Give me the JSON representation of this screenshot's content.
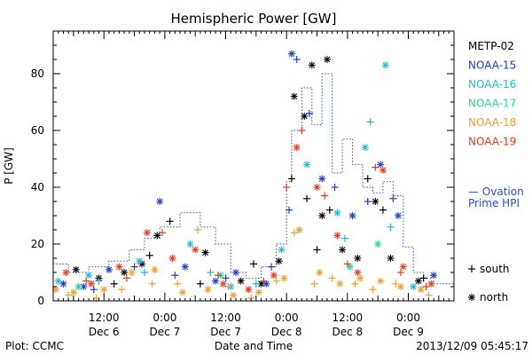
{
  "chart_data": {
    "type": "scatter",
    "title": "Hemispheric Power [GW]",
    "ylabel": "P [GW]",
    "xlabel": "Date and Time",
    "ylim": [
      0,
      95
    ],
    "yticks": [
      0,
      20,
      40,
      60,
      80
    ],
    "xlim": [
      "2013-12-06 02:00",
      "2013-12-09 09:00"
    ],
    "xticks": [
      {
        "time": "2013-12-06 12:00",
        "top": "12:00",
        "bottom": "Dec 6"
      },
      {
        "time": "2013-12-07 00:00",
        "top": "0:00",
        "bottom": "Dec 7"
      },
      {
        "time": "2013-12-07 12:00",
        "top": "12:00",
        "bottom": "Dec 7"
      },
      {
        "time": "2013-12-08 00:00",
        "top": "0:00",
        "bottom": "Dec 8"
      },
      {
        "time": "2013-12-08 12:00",
        "top": "12:00",
        "bottom": "Dec 8"
      },
      {
        "time": "2013-12-09 00:00",
        "top": "0:00",
        "bottom": "Dec 9"
      }
    ],
    "legend": [
      {
        "name": "METP-02",
        "color": "#000000"
      },
      {
        "name": "NOAA-15",
        "color": "#1e3cc8"
      },
      {
        "name": "NOAA-16",
        "color": "#22b8d8"
      },
      {
        "name": "NOAA-17",
        "color": "#22d89a"
      },
      {
        "name": "NOAA-18",
        "color": "#f0a030"
      },
      {
        "name": "NOAA-19",
        "color": "#e83a1e"
      }
    ],
    "ovation_label_line1": "— Ovation",
    "ovation_label_line2": "Prime HPI",
    "ovation_color": "#2050d8",
    "marker_legend": [
      {
        "symbol": "+",
        "label": "south"
      },
      {
        "symbol": "*",
        "label": "north"
      }
    ],
    "ovation_step": {
      "times": [
        "2013-12-06 02:00",
        "2013-12-06 05:00",
        "2013-12-06 09:00",
        "2013-12-06 13:00",
        "2013-12-06 17:00",
        "2013-12-06 20:00",
        "2013-12-06 23:00",
        "2013-12-07 03:00",
        "2013-12-07 07:00",
        "2013-12-07 10:00",
        "2013-12-07 13:00",
        "2013-12-07 16:00",
        "2013-12-07 19:00",
        "2013-12-07 22:00",
        "2013-12-08 00:00",
        "2013-12-08 01:00",
        "2013-12-08 03:00",
        "2013-12-08 05:00",
        "2013-12-08 07:00",
        "2013-12-08 09:00",
        "2013-12-08 11:00",
        "2013-12-08 13:00",
        "2013-12-08 15:00",
        "2013-12-08 17:00",
        "2013-12-08 19:00",
        "2013-12-08 21:00",
        "2013-12-08 23:00",
        "2013-12-09 01:00",
        "2013-12-09 03:00",
        "2013-12-09 05:00",
        "2013-12-09 09:00"
      ],
      "values": [
        13,
        10,
        12,
        14,
        18,
        22,
        26,
        31,
        26,
        20,
        10,
        8,
        12,
        20,
        42,
        60,
        75,
        62,
        80,
        45,
        57,
        48,
        40,
        38,
        42,
        37,
        19,
        10,
        8,
        6,
        6
      ]
    },
    "series": [
      {
        "name": "METP-02",
        "marker": "*",
        "points": [
          [
            "2013-12-06 06:30",
            11
          ],
          [
            "2013-12-06 11:00",
            8
          ],
          [
            "2013-12-06 16:00",
            10
          ],
          [
            "2013-12-06 19:30",
            13
          ],
          [
            "2013-12-06 22:30",
            23
          ],
          [
            "2013-12-07 08:00",
            17
          ],
          [
            "2013-12-07 15:00",
            7
          ],
          [
            "2013-12-07 19:00",
            6
          ],
          [
            "2013-12-07 22:30",
            14
          ],
          [
            "2013-12-08 01:30",
            72
          ],
          [
            "2013-12-08 03:30",
            65
          ],
          [
            "2013-12-08 05:00",
            83
          ],
          [
            "2013-12-08 07:00",
            30
          ],
          [
            "2013-12-08 08:00",
            85
          ],
          [
            "2013-12-08 11:00",
            18
          ],
          [
            "2013-12-08 14:00",
            15
          ],
          [
            "2013-12-08 17:30",
            35
          ],
          [
            "2013-12-08 20:30",
            15
          ],
          [
            "2013-12-09 02:00",
            7
          ]
        ]
      },
      {
        "name": "METP-02",
        "marker": "+",
        "points": [
          [
            "2013-12-06 14:00",
            6
          ],
          [
            "2013-12-06 21:00",
            16
          ],
          [
            "2013-12-07 01:00",
            28
          ],
          [
            "2013-12-07 07:00",
            6
          ],
          [
            "2013-12-07 17:30",
            13
          ],
          [
            "2013-12-08 01:00",
            43
          ],
          [
            "2013-12-08 04:00",
            36
          ],
          [
            "2013-12-08 06:00",
            18
          ],
          [
            "2013-12-08 08:30",
            32
          ],
          [
            "2013-12-08 16:00",
            43
          ],
          [
            "2013-12-08 19:00",
            32
          ],
          [
            "2013-12-09 03:00",
            8
          ]
        ]
      },
      {
        "name": "NOAA-15",
        "marker": "*",
        "points": [
          [
            "2013-12-06 04:00",
            6
          ],
          [
            "2013-12-06 08:00",
            5
          ],
          [
            "2013-12-06 13:00",
            11
          ],
          [
            "2013-12-06 23:00",
            35
          ],
          [
            "2013-12-07 04:00",
            12
          ],
          [
            "2013-12-07 10:00",
            7
          ],
          [
            "2013-12-07 14:00",
            10
          ],
          [
            "2013-12-07 20:00",
            6
          ],
          [
            "2013-12-08 01:00",
            87
          ],
          [
            "2013-12-08 07:00",
            43
          ],
          [
            "2013-12-08 13:00",
            30
          ],
          [
            "2013-12-08 18:30",
            48
          ],
          [
            "2013-12-08 22:00",
            30
          ],
          [
            "2013-12-09 05:00",
            9
          ]
        ]
      },
      {
        "name": "NOAA-15",
        "marker": "+",
        "points": [
          [
            "2013-12-06 10:00",
            4
          ],
          [
            "2013-12-06 18:00",
            12
          ],
          [
            "2013-12-07 02:00",
            9
          ],
          [
            "2013-12-07 12:00",
            8
          ],
          [
            "2013-12-07 21:00",
            12
          ],
          [
            "2013-12-08 00:30",
            32
          ],
          [
            "2013-12-08 02:00",
            85
          ],
          [
            "2013-12-08 04:30",
            66
          ],
          [
            "2013-12-08 09:30",
            40
          ],
          [
            "2013-12-08 16:00",
            35
          ],
          [
            "2013-12-08 21:00",
            36
          ]
        ]
      },
      {
        "name": "NOAA-16",
        "marker": "*",
        "points": [
          [
            "2013-12-06 03:00",
            7
          ],
          [
            "2013-12-06 09:00",
            9
          ],
          [
            "2013-12-06 19:00",
            14
          ],
          [
            "2013-12-07 05:00",
            20
          ],
          [
            "2013-12-07 13:00",
            5
          ],
          [
            "2013-12-07 23:00",
            18
          ],
          [
            "2013-12-08 04:00",
            48
          ],
          [
            "2013-12-08 10:00",
            31
          ],
          [
            "2013-12-08 15:30",
            54
          ],
          [
            "2013-12-08 19:30",
            83
          ],
          [
            "2013-12-09 01:00",
            5
          ]
        ]
      },
      {
        "name": "NOAA-16",
        "marker": "+",
        "points": [
          [
            "2013-12-06 11:00",
            7
          ],
          [
            "2013-12-06 20:00",
            10
          ],
          [
            "2013-12-07 09:00",
            10
          ],
          [
            "2013-12-07 18:00",
            6
          ],
          [
            "2013-12-08 02:30",
            25
          ],
          [
            "2013-12-08 11:30",
            22
          ],
          [
            "2013-12-08 16:30",
            63
          ],
          [
            "2013-12-08 20:30",
            26
          ]
        ]
      },
      {
        "name": "NOAA-17",
        "marker": "*",
        "points": [
          [
            "2013-12-06 07:00",
            5
          ],
          [
            "2013-12-07 11:00",
            9
          ],
          [
            "2013-12-08 12:30",
            12
          ],
          [
            "2013-12-08 18:00",
            20
          ]
        ]
      },
      {
        "name": "NOAA-18",
        "marker": "*",
        "points": [
          [
            "2013-12-06 02:30",
            4
          ],
          [
            "2013-12-06 06:00",
            3
          ],
          [
            "2013-12-06 12:00",
            4
          ],
          [
            "2013-12-06 17:30",
            10
          ],
          [
            "2013-12-06 22:00",
            11
          ],
          [
            "2013-12-07 03:30",
            3
          ],
          [
            "2013-12-07 08:30",
            4
          ],
          [
            "2013-12-07 13:30",
            2
          ],
          [
            "2013-12-07 18:30",
            3
          ],
          [
            "2013-12-07 23:30",
            8
          ],
          [
            "2013-12-08 02:30",
            25
          ],
          [
            "2013-12-08 06:30",
            10
          ],
          [
            "2013-12-08 10:30",
            6
          ],
          [
            "2013-12-08 14:30",
            8
          ],
          [
            "2013-12-08 18:30",
            7
          ],
          [
            "2013-12-08 22:30",
            5
          ],
          [
            "2013-12-09 02:30",
            4
          ]
        ]
      },
      {
        "name": "NOAA-18",
        "marker": "+",
        "points": [
          [
            "2013-12-06 05:00",
            2
          ],
          [
            "2013-12-06 10:30",
            1
          ],
          [
            "2013-12-06 15:30",
            4
          ],
          [
            "2013-12-06 21:30",
            6
          ],
          [
            "2013-12-07 02:30",
            6
          ],
          [
            "2013-12-07 06:30",
            25
          ],
          [
            "2013-12-07 12:30",
            5
          ],
          [
            "2013-12-07 17:00",
            1
          ],
          [
            "2013-12-07 22:00",
            7
          ],
          [
            "2013-12-08 01:30",
            24
          ],
          [
            "2013-12-08 05:30",
            6
          ],
          [
            "2013-12-08 09:00",
            8
          ],
          [
            "2013-12-08 13:30",
            6
          ],
          [
            "2013-12-08 17:00",
            4
          ],
          [
            "2013-12-08 21:30",
            6
          ],
          [
            "2013-12-09 04:00",
            2
          ]
        ]
      },
      {
        "name": "NOAA-19",
        "marker": "*",
        "points": [
          [
            "2013-12-06 04:30",
            10
          ],
          [
            "2013-12-06 09:30",
            6
          ],
          [
            "2013-12-06 15:00",
            12
          ],
          [
            "2013-12-06 20:30",
            24
          ],
          [
            "2013-12-07 01:30",
            15
          ],
          [
            "2013-12-07 06:00",
            18
          ],
          [
            "2013-12-07 11:30",
            6
          ],
          [
            "2013-12-07 16:30",
            4
          ],
          [
            "2013-12-07 21:30",
            9
          ],
          [
            "2013-12-08 02:00",
            54
          ],
          [
            "2013-12-08 06:00",
            40
          ],
          [
            "2013-12-08 10:00",
            23
          ],
          [
            "2013-12-08 14:00",
            10
          ],
          [
            "2013-12-08 19:00",
            46
          ],
          [
            "2013-12-08 23:00",
            12
          ],
          [
            "2013-12-09 04:30",
            6
          ]
        ]
      },
      {
        "name": "NOAA-19",
        "marker": "+",
        "points": [
          [
            "2013-12-06 08:30",
            7
          ],
          [
            "2013-12-06 16:30",
            8
          ],
          [
            "2013-12-06 23:30",
            24
          ],
          [
            "2013-12-07 10:30",
            9
          ],
          [
            "2013-12-07 19:30",
            7
          ],
          [
            "2013-12-08 00:00",
            40
          ],
          [
            "2013-12-08 03:00",
            60
          ],
          [
            "2013-12-08 07:30",
            37
          ],
          [
            "2013-12-08 12:00",
            13
          ],
          [
            "2013-12-08 17:30",
            47
          ],
          [
            "2013-12-08 22:30",
            10
          ],
          [
            "2013-12-09 03:30",
            5
          ]
        ]
      }
    ]
  },
  "footer": {
    "left": "Plot: CCMC",
    "right": "2013/12/09 05:45:17"
  }
}
